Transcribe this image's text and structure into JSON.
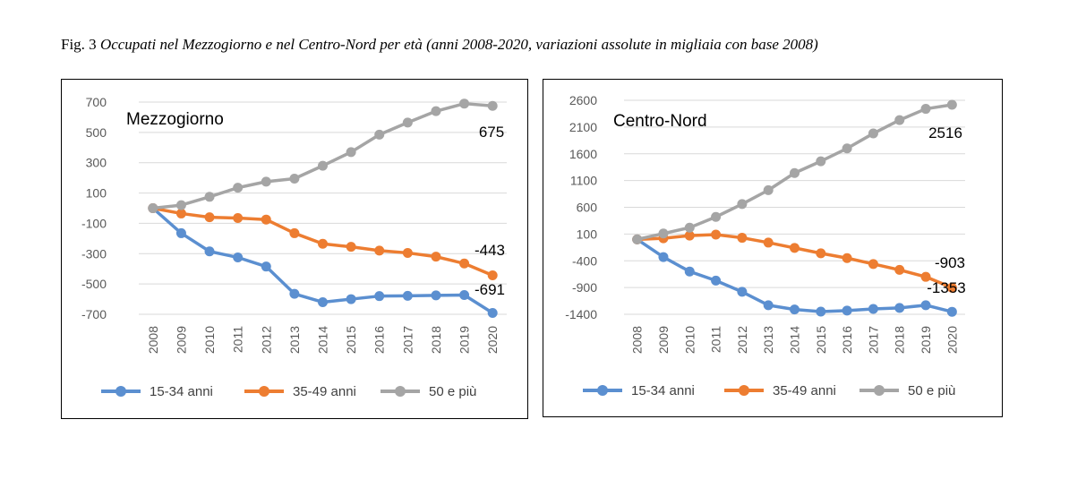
{
  "caption": {
    "fig": "Fig. 3",
    "text": "Occupati nel Mezzogiorno e nel Centro-Nord per età (anni 2008-2020, variazioni assolute in migliaia con base 2008)"
  },
  "legend": [
    "15-34 anni",
    "35-49 anni",
    "50 e più"
  ],
  "colors": {
    "15-34 anni": "#5b8fd0",
    "35-49 anni": "#ed7d31",
    "50 e più": "#a5a5a5",
    "grid": "#d9d9d9"
  },
  "chart_data": [
    {
      "type": "line",
      "title": "Mezzogiorno",
      "x": [
        "2008",
        "2009",
        "2010",
        "2011",
        "2012",
        "2013",
        "2014",
        "2015",
        "2016",
        "2017",
        "2018",
        "2019",
        "2020"
      ],
      "yticks": [
        700,
        500,
        300,
        100,
        -100,
        -300,
        -500,
        -700
      ],
      "ylim": [
        -700,
        700
      ],
      "grid": true,
      "legend_position": "bottom",
      "series": [
        {
          "name": "15-34 anni",
          "values": [
            0,
            -165,
            -285,
            -325,
            -385,
            -565,
            -620,
            -600,
            -580,
            -578,
            -575,
            -573,
            -691
          ]
        },
        {
          "name": "35-49 anni",
          "values": [
            0,
            -35,
            -60,
            -65,
            -75,
            -165,
            -235,
            -255,
            -280,
            -295,
            -320,
            -365,
            -443
          ]
        },
        {
          "name": "50 e più",
          "values": [
            0,
            20,
            75,
            135,
            175,
            195,
            280,
            370,
            485,
            565,
            640,
            690,
            675
          ]
        }
      ],
      "annotations": [
        {
          "text": "675",
          "series": "50 e più",
          "x": "2020"
        },
        {
          "text": "-443",
          "series": "35-49 anni",
          "x": "2020"
        },
        {
          "text": "-691",
          "series": "15-34 anni",
          "x": "2020"
        }
      ]
    },
    {
      "type": "line",
      "title": "Centro-Nord",
      "x": [
        "2008",
        "2009",
        "2010",
        "2011",
        "2012",
        "2013",
        "2014",
        "2015",
        "2016",
        "2017",
        "2018",
        "2019",
        "2020"
      ],
      "yticks": [
        2600,
        2100,
        1600,
        1100,
        600,
        100,
        -400,
        -900,
        -1400
      ],
      "ylim": [
        -1400,
        2600
      ],
      "grid": true,
      "legend_position": "bottom",
      "series": [
        {
          "name": "15-34 anni",
          "values": [
            0,
            -330,
            -600,
            -770,
            -980,
            -1230,
            -1310,
            -1350,
            -1330,
            -1300,
            -1280,
            -1230,
            -1353
          ]
        },
        {
          "name": "35-49 anni",
          "values": [
            0,
            20,
            70,
            90,
            30,
            -60,
            -160,
            -260,
            -350,
            -460,
            -570,
            -700,
            -903
          ]
        },
        {
          "name": "50 e più",
          "values": [
            0,
            110,
            220,
            420,
            660,
            920,
            1240,
            1460,
            1700,
            1980,
            2230,
            2440,
            2516
          ]
        }
      ],
      "annotations": [
        {
          "text": "2516",
          "series": "50 e più",
          "x": "2020"
        },
        {
          "text": "-903",
          "series": "35-49 anni",
          "x": "2020"
        },
        {
          "text": "-1353",
          "series": "15-34 anni",
          "x": "2020"
        }
      ]
    }
  ]
}
